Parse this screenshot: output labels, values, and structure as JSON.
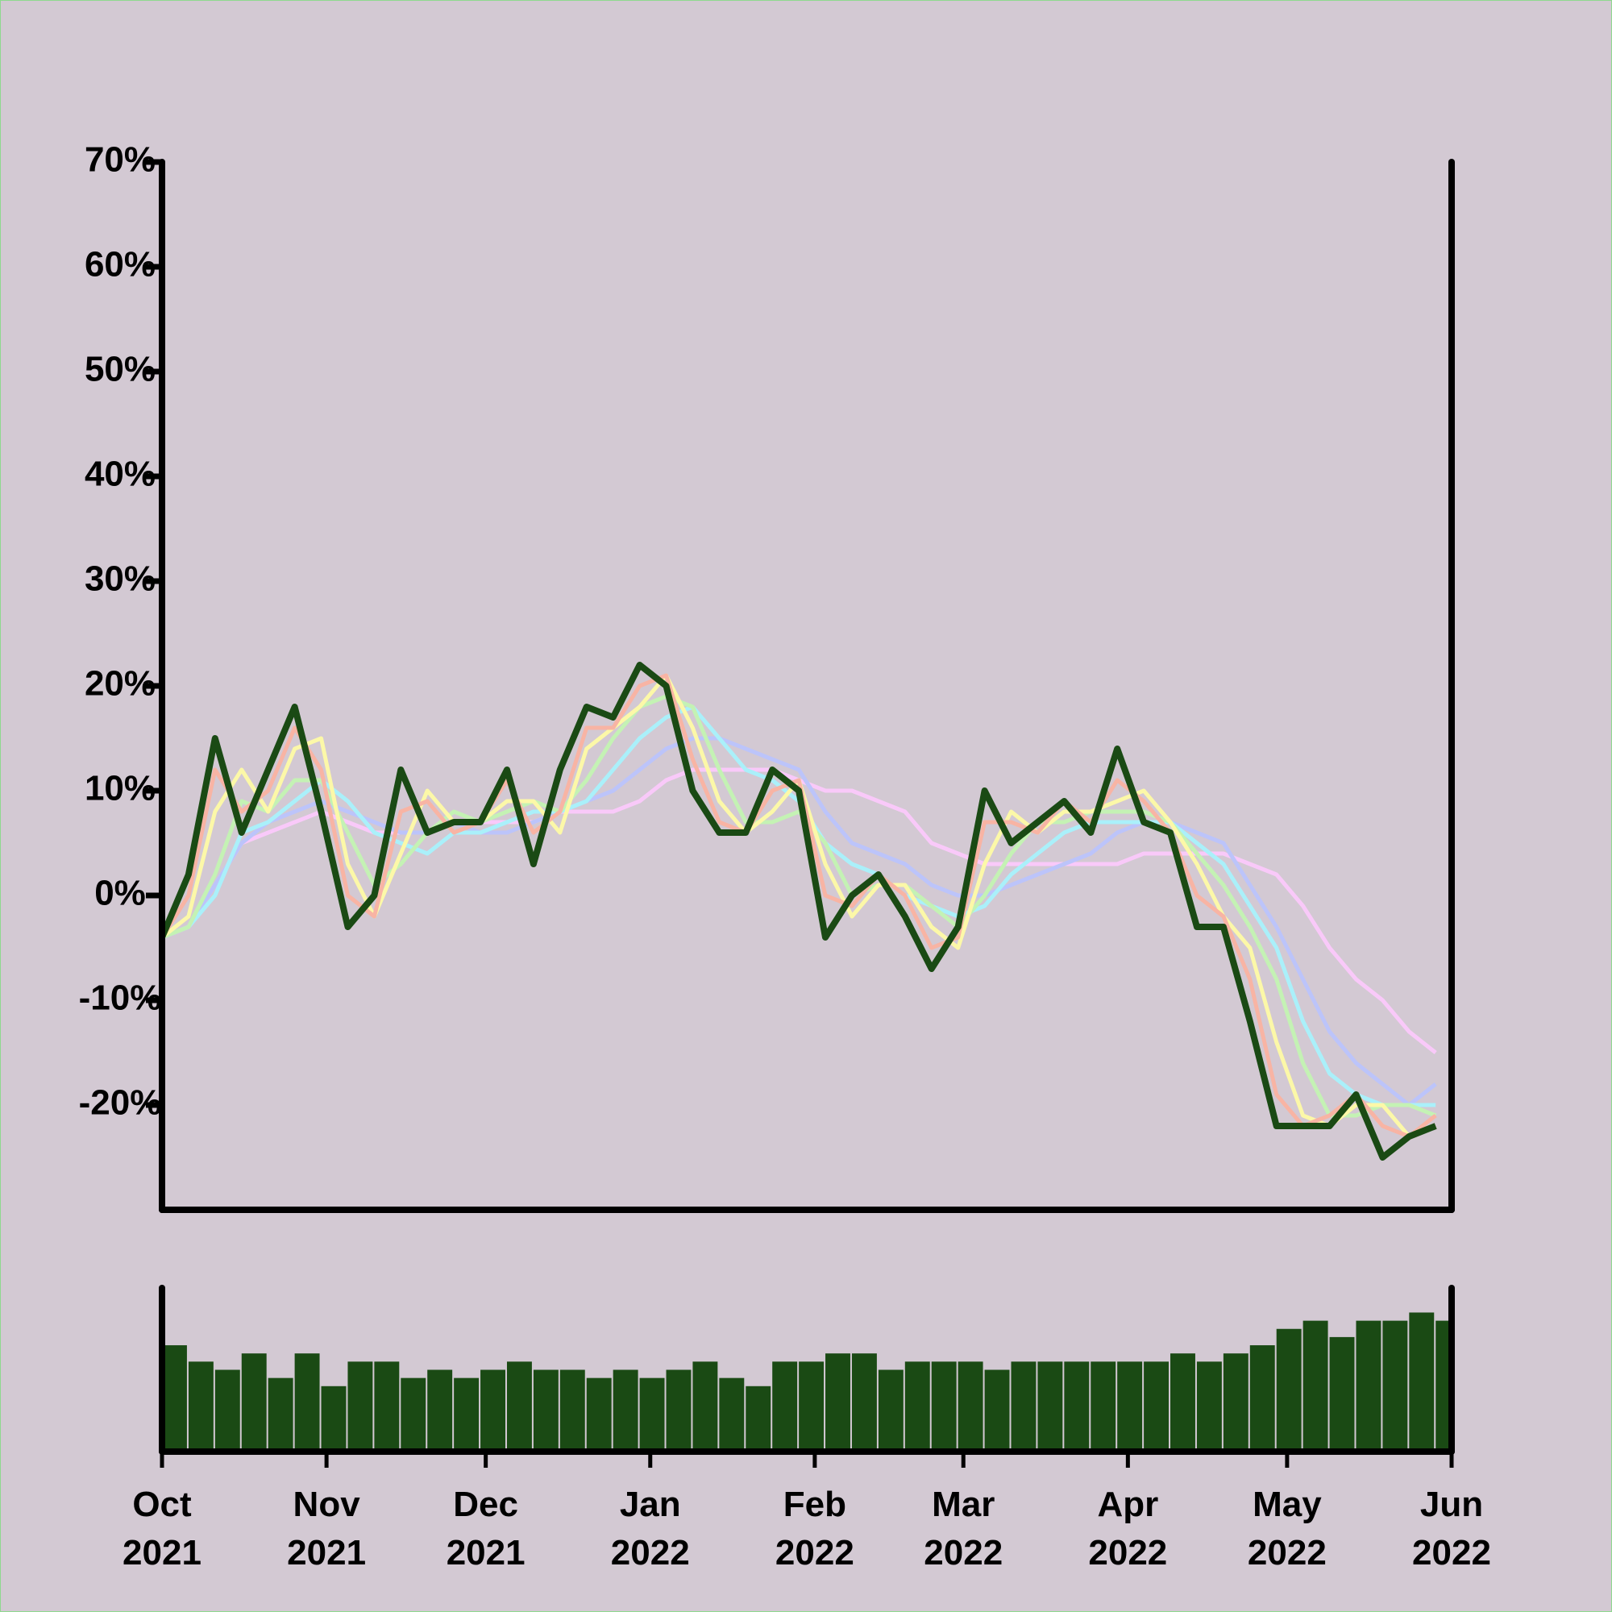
{
  "chart_data": [
    {
      "type": "line",
      "x": [
        "2021-10-01",
        "2021-10-06",
        "2021-10-11",
        "2021-10-16",
        "2021-10-21",
        "2021-10-26",
        "2021-10-31",
        "2021-11-05",
        "2021-11-10",
        "2021-11-15",
        "2021-11-20",
        "2021-11-25",
        "2021-11-30",
        "2021-12-05",
        "2021-12-10",
        "2021-12-15",
        "2021-12-20",
        "2021-12-25",
        "2021-12-30",
        "2022-01-04",
        "2022-01-09",
        "2022-01-14",
        "2022-01-19",
        "2022-01-24",
        "2022-01-29",
        "2022-02-03",
        "2022-02-08",
        "2022-02-13",
        "2022-02-18",
        "2022-02-23",
        "2022-02-28",
        "2022-03-05",
        "2022-03-10",
        "2022-03-15",
        "2022-03-20",
        "2022-03-25",
        "2022-03-30",
        "2022-04-04",
        "2022-04-09",
        "2022-04-14",
        "2022-04-19",
        "2022-04-24",
        "2022-04-29",
        "2022-05-04",
        "2022-05-09",
        "2022-05-14",
        "2022-05-19",
        "2022-05-24",
        "2022-05-29"
      ],
      "series": [
        {
          "color": "#f9c9f9",
          "width": 5,
          "values": [
            -4,
            -3,
            1,
            5,
            6,
            7,
            8,
            7,
            6,
            6,
            6,
            7,
            7,
            7,
            7,
            8,
            8,
            8,
            9,
            11,
            12,
            12,
            12,
            12,
            11,
            10,
            10,
            9,
            8,
            5,
            4,
            3,
            3,
            3,
            3,
            3,
            3,
            4,
            4,
            4,
            4,
            3,
            2,
            -1,
            -5,
            -8,
            -10,
            -13,
            -15
          ]
        },
        {
          "color": "#bcc4fa",
          "width": 5,
          "values": [
            -4,
            -3,
            1,
            5,
            7,
            8,
            9,
            8,
            7,
            6,
            6,
            7,
            6,
            6,
            7,
            8,
            9,
            10,
            12,
            14,
            15,
            15,
            14,
            13,
            12,
            8,
            5,
            4,
            3,
            1,
            0,
            0,
            1,
            2,
            3,
            4,
            6,
            7,
            7,
            6,
            5,
            1,
            -3,
            -8,
            -13,
            -16,
            -18,
            -20,
            -18
          ]
        },
        {
          "color": "#aaf0fa",
          "width": 5,
          "values": [
            -4,
            -3,
            0,
            6,
            7,
            9,
            11,
            9,
            6,
            5,
            4,
            6,
            6,
            7,
            8,
            8,
            9,
            12,
            15,
            17,
            18,
            15,
            12,
            11,
            9,
            5,
            3,
            2,
            0,
            -1,
            -2,
            -1,
            2,
            4,
            6,
            7,
            7,
            7,
            7,
            5,
            3,
            -1,
            -5,
            -12,
            -17,
            -19,
            -20,
            -20,
            -20
          ]
        },
        {
          "color": "#c4f2b4",
          "width": 5,
          "values": [
            -4,
            -3,
            2,
            9,
            8,
            11,
            11,
            6,
            1,
            3,
            6,
            8,
            7,
            8,
            9,
            8,
            11,
            15,
            18,
            19,
            18,
            12,
            7,
            7,
            8,
            5,
            0,
            1,
            1,
            -1,
            -3,
            0,
            4,
            7,
            7,
            8,
            8,
            8,
            7,
            4,
            1,
            -3,
            -8,
            -16,
            -21,
            -21,
            -20,
            -20,
            -21
          ]
        },
        {
          "color": "#fcf8a8",
          "width": 5,
          "values": [
            -4,
            -2,
            8,
            12,
            8,
            14,
            15,
            3,
            -2,
            4,
            10,
            7,
            7,
            9,
            9,
            6,
            14,
            16,
            18,
            21,
            16,
            9,
            6,
            8,
            11,
            3,
            -2,
            1,
            1,
            -3,
            -5,
            3,
            8,
            6,
            8,
            8,
            9,
            10,
            7,
            3,
            -2,
            -5,
            -14,
            -21,
            -22,
            -20,
            -20,
            -23,
            -22
          ]
        },
        {
          "color": "#f8b4a4",
          "width": 5,
          "values": [
            -4,
            0,
            12,
            8,
            10,
            16,
            12,
            0,
            -2,
            8,
            9,
            6,
            7,
            11,
            6,
            8,
            16,
            16,
            20,
            21,
            13,
            7,
            6,
            10,
            11,
            0,
            -1,
            2,
            0,
            -5,
            -4,
            7,
            7,
            6,
            9,
            7,
            11,
            9,
            6,
            0,
            -2,
            -8,
            -19,
            -22,
            -21,
            -19,
            -22,
            -23,
            -21
          ]
        },
        {
          "color": "#1a4a14",
          "width": 8,
          "values": [
            -4,
            2,
            15,
            6,
            12,
            18,
            8,
            -3,
            0,
            12,
            6,
            7,
            7,
            12,
            3,
            12,
            18,
            17,
            22,
            20,
            10,
            6,
            6,
            12,
            10,
            -4,
            0,
            2,
            -2,
            -7,
            -3,
            10,
            5,
            7,
            9,
            6,
            14,
            7,
            6,
            -3,
            -3,
            -12,
            -22,
            -22,
            -22,
            -19,
            -25,
            -23,
            -22
          ]
        }
      ],
      "xlim": [
        "2021-10-01",
        "2022-06-01"
      ],
      "ylim": [
        -30,
        70
      ],
      "yticks": [
        {
          "value": -20,
          "label": "-20%"
        },
        {
          "value": -10,
          "label": "-10%"
        },
        {
          "value": 0,
          "label": "0%"
        },
        {
          "value": 10,
          "label": "10%"
        },
        {
          "value": 20,
          "label": "20%"
        },
        {
          "value": 30,
          "label": "30%"
        },
        {
          "value": 40,
          "label": "40%"
        },
        {
          "value": 50,
          "label": "50%"
        },
        {
          "value": 60,
          "label": "60%"
        },
        {
          "value": 70,
          "label": "70%"
        }
      ]
    },
    {
      "type": "bar",
      "x": [
        "2021-10-01",
        "2021-10-06",
        "2021-10-11",
        "2021-10-16",
        "2021-10-21",
        "2021-10-26",
        "2021-10-31",
        "2021-11-05",
        "2021-11-10",
        "2021-11-15",
        "2021-11-20",
        "2021-11-25",
        "2021-11-30",
        "2021-12-05",
        "2021-12-10",
        "2021-12-15",
        "2021-12-20",
        "2021-12-25",
        "2021-12-30",
        "2022-01-04",
        "2022-01-09",
        "2022-01-14",
        "2022-01-19",
        "2022-01-24",
        "2022-01-29",
        "2022-02-03",
        "2022-02-08",
        "2022-02-13",
        "2022-02-18",
        "2022-02-23",
        "2022-02-28",
        "2022-03-05",
        "2022-03-10",
        "2022-03-15",
        "2022-03-20",
        "2022-03-25",
        "2022-03-30",
        "2022-04-04",
        "2022-04-09",
        "2022-04-14",
        "2022-04-19",
        "2022-04-24",
        "2022-04-29",
        "2022-05-04",
        "2022-05-09",
        "2022-05-14",
        "2022-05-19",
        "2022-05-24",
        "2022-05-29"
      ],
      "values": [
        65,
        55,
        50,
        60,
        45,
        60,
        40,
        55,
        55,
        45,
        50,
        45,
        50,
        55,
        50,
        50,
        45,
        50,
        45,
        50,
        55,
        45,
        40,
        55,
        55,
        60,
        60,
        50,
        55,
        55,
        55,
        50,
        55,
        55,
        55,
        55,
        55,
        55,
        60,
        55,
        60,
        65,
        75,
        80,
        70,
        80,
        80,
        85,
        80
      ],
      "color": "#1a4a14",
      "xlim": [
        "2021-10-01",
        "2022-06-01"
      ],
      "ylim": [
        0,
        100
      ],
      "xticks": [
        {
          "value": "2021-10-01",
          "label": "Oct 2021"
        },
        {
          "value": "2021-11-01",
          "label": "Nov 2021"
        },
        {
          "value": "2021-12-01",
          "label": "Dec 2021"
        },
        {
          "value": "2022-01-01",
          "label": "Jan 2022"
        },
        {
          "value": "2022-02-01",
          "label": "Feb 2022"
        },
        {
          "value": "2022-03-01",
          "label": "Mar 2022"
        },
        {
          "value": "2022-04-01",
          "label": "Apr 2022"
        },
        {
          "value": "2022-05-01",
          "label": "May 2022"
        },
        {
          "value": "2022-06-01",
          "label": "Jun 2022"
        }
      ]
    }
  ]
}
